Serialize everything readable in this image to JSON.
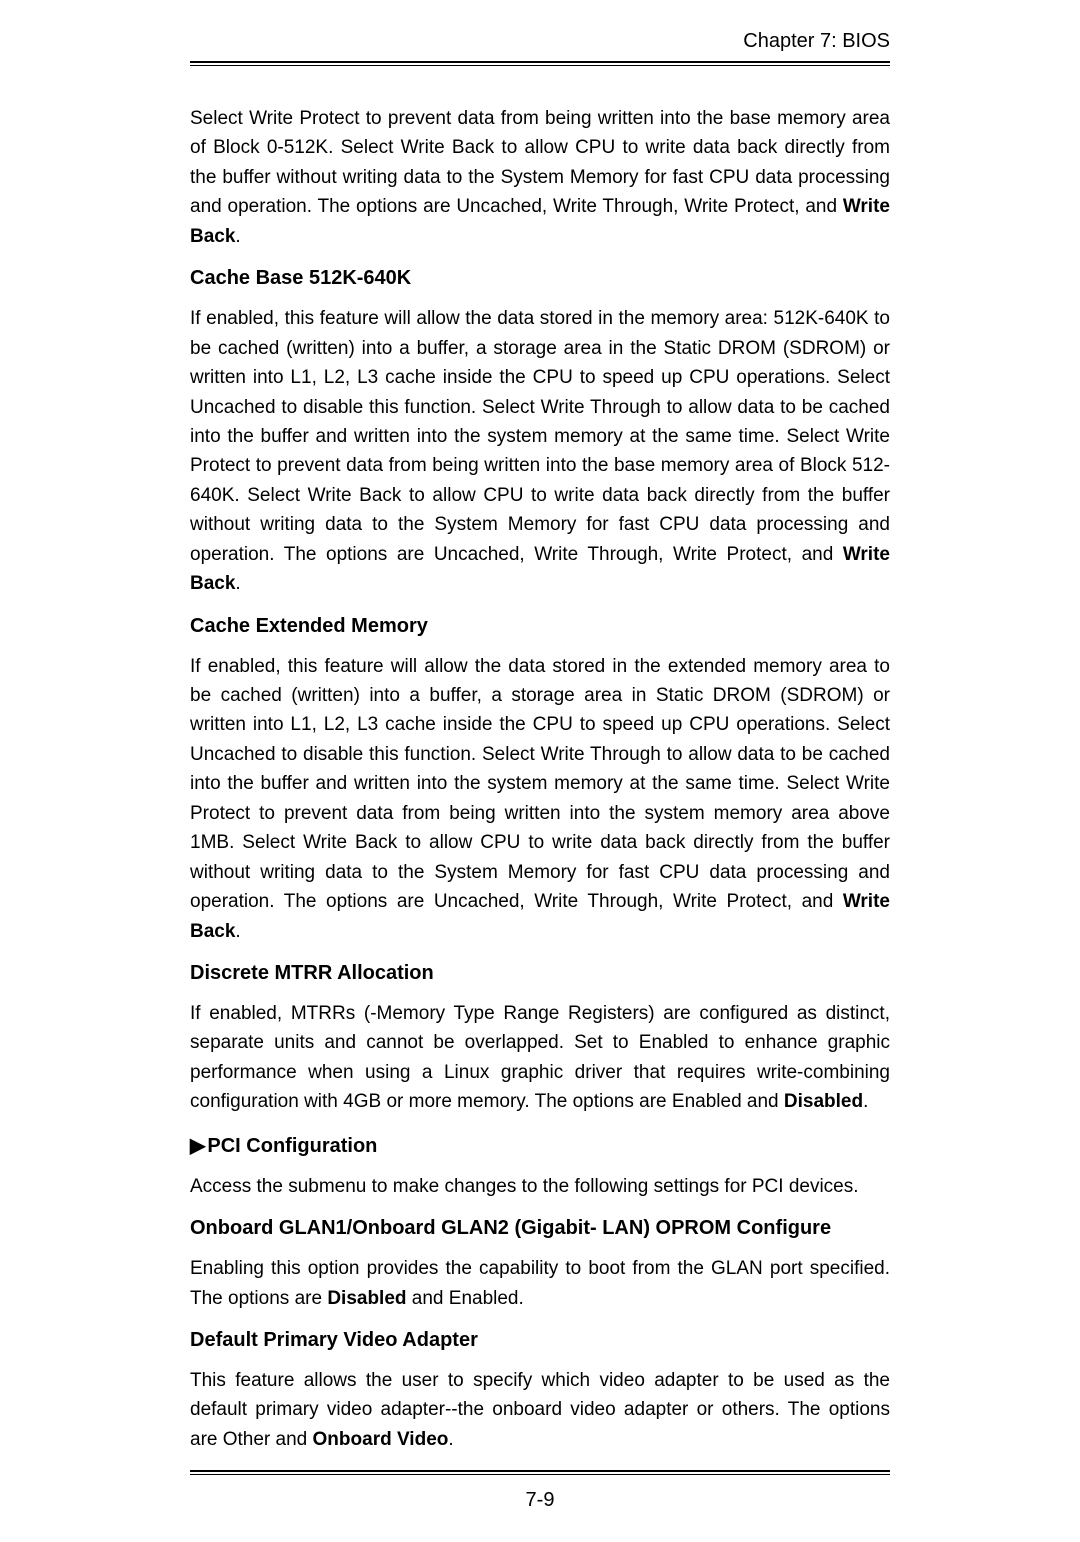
{
  "header": {
    "chapter": "Chapter 7: BIOS"
  },
  "sections": [
    {
      "type": "paragraph",
      "runs": [
        {
          "t": "Select Write Protect to  prevent data from being written into the base memory area of Block 0-512K. Select Write Back to allow CPU to write data back directly from the buffer without writing data to the System Memory for fast CPU data processing and operation. The options are Uncached, Write Through, Write Protect, and "
        },
        {
          "t": "Write Back",
          "bold": true
        },
        {
          "t": "."
        }
      ]
    },
    {
      "type": "heading",
      "text": "Cache Base 512K-640K"
    },
    {
      "type": "paragraph",
      "runs": [
        {
          "t": "If enabled, this feature will allow the data stored in the memory area: 512K-640K to be cached (written) into a buffer, a storage area in the  Static DROM (SDROM) or written into L1, L2, L3 cache inside the CPU to speed up CPU operations. Select Uncached to disable this function. Select Write Through to allow data to be cached into  the buffer and written into  the system memory at the same time.  Select Write Protect to  prevent data from being written into the base memory area of Block 512-640K. Select Write Back to allow CPU to write data back directly from the buffer without writing data to the System Memory for fast CPU data processing and operation. The options are Uncached,  Write Through, Write Protect, and "
        },
        {
          "t": "Write Back",
          "bold": true
        },
        {
          "t": "."
        }
      ]
    },
    {
      "type": "heading",
      "text": "Cache Extended Memory"
    },
    {
      "type": "paragraph",
      "runs": [
        {
          "t": "If enabled, this feature will allow the data stored in the extended memory area to be cached (written) into a buffer, a storage area in Static DROM (SDROM) or written into  L1, L2, L3 cache inside the CPU to speed up CPU operations. Select Uncached to disable this function. Select Write Through to allow data to be cached into the buffer and written into  the system memory at the same time. Select Write Protect to prevent data from being written into the system memory area above 1MB. Select Write Back to allow CPU to write data back directly from the buffer without writing data to the System Memory for fast CPU data processing and operation. The options are Uncached,  Write Through, Write Protect, and "
        },
        {
          "t": "Write Back",
          "bold": true
        },
        {
          "t": "."
        }
      ]
    },
    {
      "type": "heading",
      "text": "Discrete MTRR Allocation"
    },
    {
      "type": "paragraph",
      "runs": [
        {
          "t": "If enabled, MTRRs (-Memory Type Range Registers) are configured as distinct, separate units and cannot be overlapped. Set to Enabled to enhance graphic performance when using a Linux graphic driver that requires write-combining configuration with 4GB or more memory. The options are Enabled and "
        },
        {
          "t": "Disabled",
          "bold": true
        },
        {
          "t": "."
        }
      ]
    },
    {
      "type": "heading-arrow",
      "text": "PCI Configuration"
    },
    {
      "type": "paragraph",
      "runs": [
        {
          "t": "Access the submenu to make changes to the following settings for PCI devices."
        }
      ]
    },
    {
      "type": "heading",
      "text": "Onboard GLAN1/Onboard GLAN2 (Gigabit- LAN) OPROM Configure"
    },
    {
      "type": "paragraph",
      "runs": [
        {
          "t": "Enabling this option provides the capability to boot from the GLAN port specified. The options are "
        },
        {
          "t": "Disabled",
          "bold": true
        },
        {
          "t": " and Enabled."
        }
      ]
    },
    {
      "type": "heading",
      "text": "Default Primary Video Adapter"
    },
    {
      "type": "paragraph",
      "runs": [
        {
          "t": "This feature allows the user to specify which video adapter to be used as the default primary video adapter--the onboard video adapter or others. The options are Other and "
        },
        {
          "t": "Onboard Video",
          "bold": true
        },
        {
          "t": "."
        }
      ]
    }
  ],
  "footer": {
    "page": "7-9"
  },
  "icons": {
    "arrow": "▶"
  },
  "colors": {
    "text": "#000000",
    "background": "#ffffff"
  }
}
